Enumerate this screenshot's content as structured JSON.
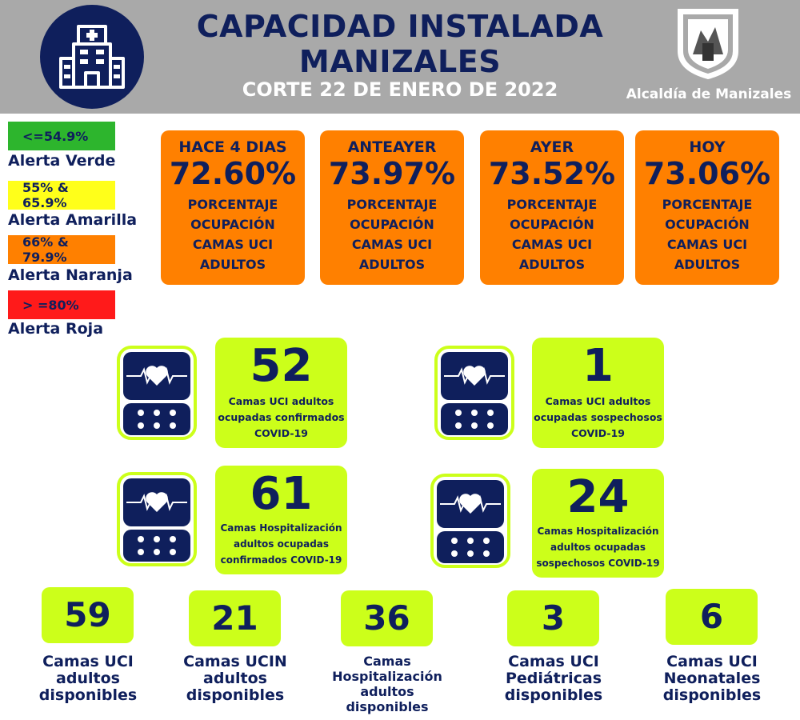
{
  "header": {
    "title_line1": "CAPACIDAD INSTALADA",
    "title_line2": "MANIZALES",
    "subtitle": "CORTE 22 DE ENERO DE 2022",
    "alcaldia": "Alcaldía de Manizales",
    "logo_icon": "hospital-building-icon",
    "bg_color": "#a9a9a9",
    "brand_color": "#0f1f5c"
  },
  "legend": [
    {
      "range": "<=54.9%",
      "label": "Alerta Verde",
      "color": "#2db52d"
    },
    {
      "range": "55% & 65.9%",
      "label": "Alerta Amarilla",
      "color": "#ffff1a"
    },
    {
      "range": "66% & 79.9%",
      "label": "Alerta Naranja",
      "color": "#ff8000"
    },
    {
      "range": "> =80%",
      "label": "Alerta Roja",
      "color": "#ff1a1a"
    }
  ],
  "occupancy_cards": [
    {
      "label": "HACE 4 DIAS",
      "value": "72.60%",
      "desc": "PORCENTAJE OCUPACIÓN CAMAS UCI ADULTOS"
    },
    {
      "label": "ANTEAYER",
      "value": "73.97%",
      "desc": "PORCENTAJE OCUPACIÓN CAMAS UCI ADULTOS"
    },
    {
      "label": "AYER",
      "value": "73.52%",
      "desc": "PORCENTAJE OCUPACIÓN CAMAS UCI ADULTOS"
    },
    {
      "label": "HOY",
      "value": "73.06%",
      "desc": "PORCENTAJE OCUPACIÓN CAMAS UCI ADULTOS"
    }
  ],
  "monitor_stats": [
    {
      "number": "52",
      "desc_lines": [
        "Camas UCI adultos",
        "ocupadas confirmados",
        "COVID-19"
      ]
    },
    {
      "number": "1",
      "desc_lines": [
        "Camas UCI adultos",
        "ocupadas sospechosos",
        "COVID-19"
      ]
    },
    {
      "number": "61",
      "desc_lines": [
        "Camas  Hospitalización",
        "adultos ocupadas",
        "confirmados COVID-19"
      ]
    },
    {
      "number": "24",
      "desc_lines": [
        "Camas  Hospitalización",
        "adultos ocupadas",
        "sospechosos COVID-19"
      ]
    }
  ],
  "available": [
    {
      "number": "59",
      "label_lines": [
        "Camas UCI",
        "adultos",
        "disponibles"
      ]
    },
    {
      "number": "21",
      "label_lines": [
        "Camas UCIN",
        "adultos",
        "disponibles"
      ]
    },
    {
      "number": "36",
      "label_lines": [
        "Camas",
        "Hospitalización",
        "adultos",
        "disponibles"
      ]
    },
    {
      "number": "3",
      "label_lines": [
        "Camas  UCI",
        "Pediátricas",
        "disponibles"
      ]
    },
    {
      "number": "6",
      "label_lines": [
        "Camas  UCI",
        "Neonatales",
        "disponibles"
      ]
    }
  ],
  "colors": {
    "orange": "#ff8000",
    "lime": "#ccff1a",
    "navy": "#0f1f5c"
  }
}
